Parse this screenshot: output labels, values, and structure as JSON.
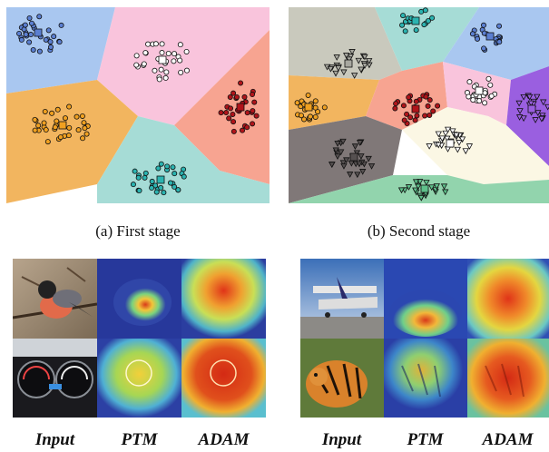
{
  "captions": {
    "first": "(a)  First stage",
    "second": "(b)  Second stage"
  },
  "column_labels_left": [
    "Input",
    "PTM",
    "ADAM"
  ],
  "column_labels_right": [
    "Input",
    "PTM",
    "ADAM"
  ],
  "colors": {
    "region_blue": "#a9c7f0",
    "region_pink": "#f9c4dc",
    "region_orange": "#f2b55f",
    "region_salmon": "#f7a491",
    "region_teal": "#a6dcd6",
    "region_gray": "#c9c9bd",
    "region_purple": "#9a5fe0",
    "region_darkgray": "#807878",
    "region_cream": "#fbf7e4",
    "region_green": "#92d4ad"
  }
}
